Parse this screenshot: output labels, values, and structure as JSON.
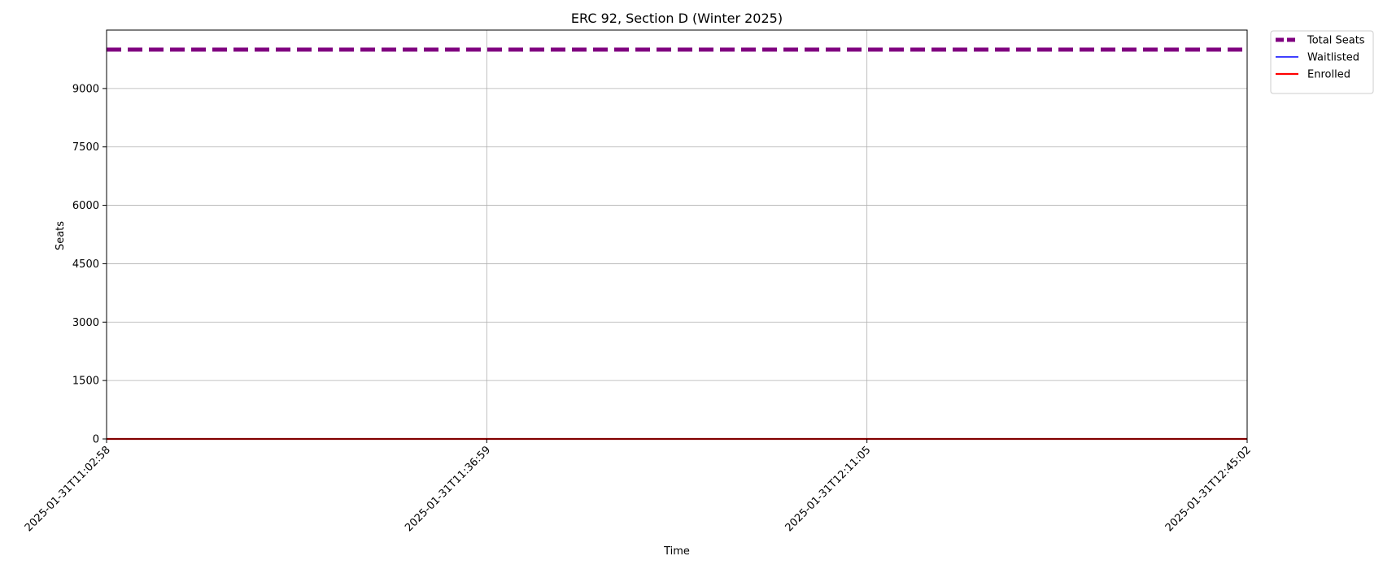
{
  "chart_data": {
    "type": "line",
    "title": "ERC 92, Section D (Winter 2025)",
    "xlabel": "Time",
    "ylabel": "Seats",
    "x": [
      "2025-01-31T11:02:58",
      "2025-01-31T11:36:59",
      "2025-01-31T12:11:05",
      "2025-01-31T12:45:02"
    ],
    "x_ticks": [
      "2025-01-31T11:02:58",
      "2025-01-31T11:36:59",
      "2025-01-31T12:11:05",
      "2025-01-31T12:45:02"
    ],
    "ylim": [
      0,
      10500
    ],
    "y_ticks": [
      0,
      1500,
      3000,
      4500,
      6000,
      7500,
      9000
    ],
    "grid": true,
    "legend_position": "outside-top-right",
    "series": [
      {
        "name": "Total Seats",
        "values": [
          10000,
          10000,
          10000,
          10000
        ],
        "color": "#800080",
        "style": "dashed"
      },
      {
        "name": "Waitlisted",
        "values": [
          0,
          0,
          0,
          0
        ],
        "color": "#0000ff",
        "style": "solid"
      },
      {
        "name": "Enrolled",
        "values": [
          0,
          0,
          0,
          0
        ],
        "color": "#ff0000",
        "style": "solid"
      }
    ]
  }
}
